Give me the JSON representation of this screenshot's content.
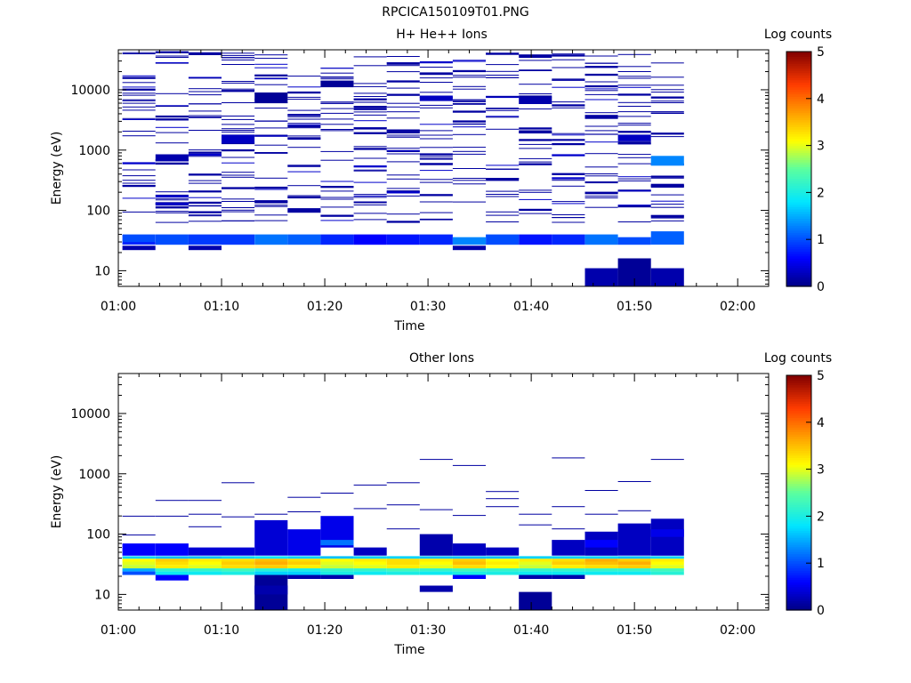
{
  "page_title": "RPCICA150109T01.PNG",
  "chart_data": [
    {
      "type": "heatmap",
      "title": "H+ He++ Ions",
      "xlabel": "Time",
      "ylabel": "Energy (eV)",
      "colorbar_label": "Log counts",
      "x_ticks": [
        "01:00",
        "01:10",
        "01:20",
        "01:30",
        "01:40",
        "01:50",
        "02:00"
      ],
      "x_range_min": [
        0,
        63
      ],
      "y_scale": "log",
      "y_ticks": [
        "10",
        "100",
        "1000",
        "10000"
      ],
      "y_range_eV": [
        5.5,
        46000
      ],
      "color_range": [
        0,
        5
      ],
      "color_ticks": [
        "0",
        "1",
        "2",
        "3",
        "4",
        "5"
      ],
      "colormap": "jet",
      "time_bins_min": [
        2,
        5.2,
        8.4,
        11.6,
        14.8,
        18,
        21.2,
        24.4,
        27.6,
        30.8,
        34,
        37.2,
        40.4,
        43.6,
        46.8,
        50,
        53.2
      ],
      "bin_width_min": 3.2,
      "cells": [
        {
          "t": 2,
          "e": [
            40,
            30
          ],
          "v": 1.0
        },
        {
          "t": 2,
          "e": [
            30,
            27
          ],
          "v": 0.8
        },
        {
          "t": 2,
          "e": [
            26,
            22
          ],
          "v": 0.2
        },
        {
          "t": 5.2,
          "e": [
            40,
            27
          ],
          "v": 1.0
        },
        {
          "t": 8.4,
          "e": [
            40,
            27
          ],
          "v": 0.9
        },
        {
          "t": 8.4,
          "e": [
            26,
            22
          ],
          "v": 0.2
        },
        {
          "t": 11.6,
          "e": [
            40,
            27
          ],
          "v": 0.9
        },
        {
          "t": 14.8,
          "e": [
            40,
            27
          ],
          "v": 1.2
        },
        {
          "t": 18,
          "e": [
            40,
            27
          ],
          "v": 1.1
        },
        {
          "t": 21.2,
          "e": [
            40,
            27
          ],
          "v": 0.8
        },
        {
          "t": 24.4,
          "e": [
            40,
            27
          ],
          "v": 0.6
        },
        {
          "t": 27.6,
          "e": [
            40,
            27
          ],
          "v": 0.7
        },
        {
          "t": 30.8,
          "e": [
            40,
            27
          ],
          "v": 0.8
        },
        {
          "t": 34,
          "e": [
            36,
            27
          ],
          "v": 1.3
        },
        {
          "t": 34,
          "e": [
            26,
            22
          ],
          "v": 0.2
        },
        {
          "t": 37.2,
          "e": [
            40,
            27
          ],
          "v": 1.0
        },
        {
          "t": 40.4,
          "e": [
            40,
            27
          ],
          "v": 0.7
        },
        {
          "t": 43.6,
          "e": [
            40,
            27
          ],
          "v": 0.8
        },
        {
          "t": 46.8,
          "e": [
            40,
            27
          ],
          "v": 1.2
        },
        {
          "t": 50,
          "e": [
            36,
            27
          ],
          "v": 1.0
        },
        {
          "t": 53.2,
          "e": [
            45,
            27
          ],
          "v": 1.1
        },
        {
          "t": 46.8,
          "e": [
            11,
            5.5
          ],
          "v": 0.2
        },
        {
          "t": 50,
          "e": [
            16,
            5.5
          ],
          "v": 0.1
        },
        {
          "t": 53.2,
          "e": [
            11,
            5.5
          ],
          "v": 0.2
        },
        {
          "t": 53.2,
          "e": [
            800,
            550
          ],
          "v": 1.3
        },
        {
          "t": 14.8,
          "e": [
            9000,
            6000
          ],
          "v": 0.1
        },
        {
          "t": 21.2,
          "e": [
            14000,
            11000
          ],
          "v": 0.1
        },
        {
          "t": 11.6,
          "e": [
            1800,
            1300
          ],
          "v": 0.3
        },
        {
          "t": 5.2,
          "e": [
            850,
            650
          ],
          "v": 0.2
        },
        {
          "t": 50,
          "e": [
            1800,
            1400
          ],
          "v": 0.3
        },
        {
          "t": 30.8,
          "e": [
            8000,
            6500
          ],
          "v": 0.3
        },
        {
          "t": 40.4,
          "e": [
            7500,
            5800
          ],
          "v": 0.2
        }
      ],
      "sparse_seed": 17,
      "sparse_energy_range_eV": [
        60,
        42000
      ],
      "sparse_value": 0.15
    },
    {
      "type": "heatmap",
      "title": "Other Ions",
      "xlabel": "Time",
      "ylabel": "Energy (eV)",
      "colorbar_label": "Log counts",
      "x_ticks": [
        "01:00",
        "01:10",
        "01:20",
        "01:30",
        "01:40",
        "01:50",
        "02:00"
      ],
      "x_range_min": [
        0,
        63
      ],
      "y_scale": "log",
      "y_ticks": [
        "10",
        "100",
        "1000",
        "10000"
      ],
      "y_range_eV": [
        5.5,
        46000
      ],
      "color_range": [
        0,
        5
      ],
      "color_ticks": [
        "0",
        "1",
        "2",
        "3",
        "4",
        "5"
      ],
      "colormap": "jet",
      "time_bins_min": [
        2,
        5.2,
        8.4,
        11.6,
        14.8,
        18,
        21.2,
        24.4,
        27.6,
        30.8,
        34,
        37.2,
        40.4,
        43.6,
        46.8,
        50,
        53.2
      ],
      "bin_width_min": 3.2,
      "band_rows": [
        {
          "e": [
            43,
            39
          ],
          "v": [
            1.7,
            1.6,
            1.6,
            1.7,
            1.8,
            1.7,
            1.6,
            1.7,
            1.7,
            1.6,
            1.6,
            1.6,
            1.7,
            1.7,
            1.7,
            1.6,
            1.7
          ]
        },
        {
          "e": [
            39,
            35
          ],
          "v": [
            3.1,
            3.4,
            3.2,
            3.3,
            3.5,
            3.3,
            3.1,
            3.2,
            3.3,
            3.2,
            3.4,
            3.1,
            3.2,
            3.3,
            3.6,
            3.4,
            3.2
          ]
        },
        {
          "e": [
            35,
            31
          ],
          "v": [
            3.0,
            3.3,
            3.1,
            3.4,
            3.6,
            3.4,
            3.0,
            3.1,
            3.3,
            3.1,
            3.5,
            3.2,
            3.0,
            3.4,
            3.5,
            3.6,
            3.1
          ]
        },
        {
          "e": [
            31,
            27
          ],
          "v": [
            2.9,
            3.2,
            3.0,
            3.3,
            3.4,
            3.2,
            2.9,
            3.0,
            3.2,
            3.0,
            3.3,
            3.1,
            2.9,
            3.2,
            3.3,
            3.4,
            3.0
          ]
        },
        {
          "e": [
            27,
            24
          ],
          "v": [
            1.5,
            2.2,
            2.2,
            2.3,
            2.1,
            2.0,
            2.2,
            2.2,
            2.3,
            2.2,
            2.3,
            2.2,
            2.2,
            2.2,
            2.2,
            2.2,
            2.3
          ]
        },
        {
          "e": [
            24,
            21
          ],
          "v": [
            1.0,
            1.9,
            1.9,
            2.0,
            1.7,
            1.7,
            2.0,
            1.9,
            2.0,
            1.9,
            2.0,
            2.0,
            1.9,
            1.9,
            1.9,
            1.9,
            2.1
          ]
        }
      ],
      "cells": [
        {
          "t": 2,
          "e": [
            70,
            44
          ],
          "v": 0.6
        },
        {
          "t": 5.2,
          "e": [
            70,
            44
          ],
          "v": 0.6
        },
        {
          "t": 8.4,
          "e": [
            60,
            44
          ],
          "v": 0.4
        },
        {
          "t": 11.6,
          "e": [
            60,
            44
          ],
          "v": 0.4
        },
        {
          "t": 14.8,
          "e": [
            170,
            44
          ],
          "v": 0.4
        },
        {
          "t": 18,
          "e": [
            120,
            44
          ],
          "v": 0.5
        },
        {
          "t": 21.2,
          "e": [
            200,
            60
          ],
          "v": 0.5
        },
        {
          "t": 21.2,
          "e": [
            80,
            65
          ],
          "v": 1.2
        },
        {
          "t": 24.4,
          "e": [
            60,
            44
          ],
          "v": 0.3
        },
        {
          "t": 30.8,
          "e": [
            100,
            44
          ],
          "v": 0.2
        },
        {
          "t": 34,
          "e": [
            70,
            44
          ],
          "v": 0.3
        },
        {
          "t": 37.2,
          "e": [
            60,
            44
          ],
          "v": 0.3
        },
        {
          "t": 43.6,
          "e": [
            80,
            44
          ],
          "v": 0.3
        },
        {
          "t": 46.8,
          "e": [
            110,
            44
          ],
          "v": 0.3
        },
        {
          "t": 46.8,
          "e": [
            80,
            60
          ],
          "v": 0.6
        },
        {
          "t": 50,
          "e": [
            150,
            44
          ],
          "v": 0.3
        },
        {
          "t": 53.2,
          "e": [
            180,
            44
          ],
          "v": 0.3
        },
        {
          "t": 53.2,
          "e": [
            120,
            90
          ],
          "v": 0.5
        },
        {
          "t": 5.2,
          "e": [
            21,
            17
          ],
          "v": 0.6
        },
        {
          "t": 14.8,
          "e": [
            21,
            5.5
          ],
          "v": 0.1
        },
        {
          "t": 18,
          "e": [
            21,
            18
          ],
          "v": 0.2
        },
        {
          "t": 21.2,
          "e": [
            21,
            18
          ],
          "v": 0.2
        },
        {
          "t": 30.8,
          "e": [
            14,
            11
          ],
          "v": 0.2
        },
        {
          "t": 34,
          "e": [
            21,
            18
          ],
          "v": 0.6
        },
        {
          "t": 40.4,
          "e": [
            21,
            18
          ],
          "v": 0.2
        },
        {
          "t": 43.6,
          "e": [
            21,
            18
          ],
          "v": 0.2
        },
        {
          "t": 40.4,
          "e": [
            11,
            5.5
          ],
          "v": 0.1
        },
        {
          "t": 14.8,
          "e": [
            14,
            10
          ],
          "v": 0.2
        }
      ],
      "lines": [
        {
          "t": 2,
          "e": 195
        },
        {
          "t": 5.2,
          "e": 195
        },
        {
          "t": 8.4,
          "e": 210
        },
        {
          "t": 11.6,
          "e": 190
        },
        {
          "t": 5.2,
          "e": 355
        },
        {
          "t": 8.4,
          "e": 355
        },
        {
          "t": 11.6,
          "e": 700
        },
        {
          "t": 18,
          "e": 400
        },
        {
          "t": 21.2,
          "e": 470
        },
        {
          "t": 24.4,
          "e": 640
        },
        {
          "t": 27.6,
          "e": 700
        },
        {
          "t": 24.4,
          "e": 260
        },
        {
          "t": 30.8,
          "e": 1700
        },
        {
          "t": 34,
          "e": 1350
        },
        {
          "t": 37.2,
          "e": 500
        },
        {
          "t": 37.2,
          "e": 380
        },
        {
          "t": 37.2,
          "e": 280
        },
        {
          "t": 40.4,
          "e": 210
        },
        {
          "t": 43.6,
          "e": 1800
        },
        {
          "t": 43.6,
          "e": 280
        },
        {
          "t": 46.8,
          "e": 520
        },
        {
          "t": 46.8,
          "e": 210
        },
        {
          "t": 50,
          "e": 730
        },
        {
          "t": 53.2,
          "e": 1700
        },
        {
          "t": 27.6,
          "e": 300
        },
        {
          "t": 30.8,
          "e": 250
        },
        {
          "t": 34,
          "e": 200
        },
        {
          "t": 40.4,
          "e": 140
        },
        {
          "t": 2,
          "e": 95
        },
        {
          "t": 8.4,
          "e": 130
        },
        {
          "t": 14.8,
          "e": 210
        },
        {
          "t": 18,
          "e": 230
        },
        {
          "t": 21.2,
          "e": 150
        },
        {
          "t": 27.6,
          "e": 120
        },
        {
          "t": 43.6,
          "e": 120
        },
        {
          "t": 50,
          "e": 240
        }
      ],
      "line_value": 0.15
    }
  ]
}
